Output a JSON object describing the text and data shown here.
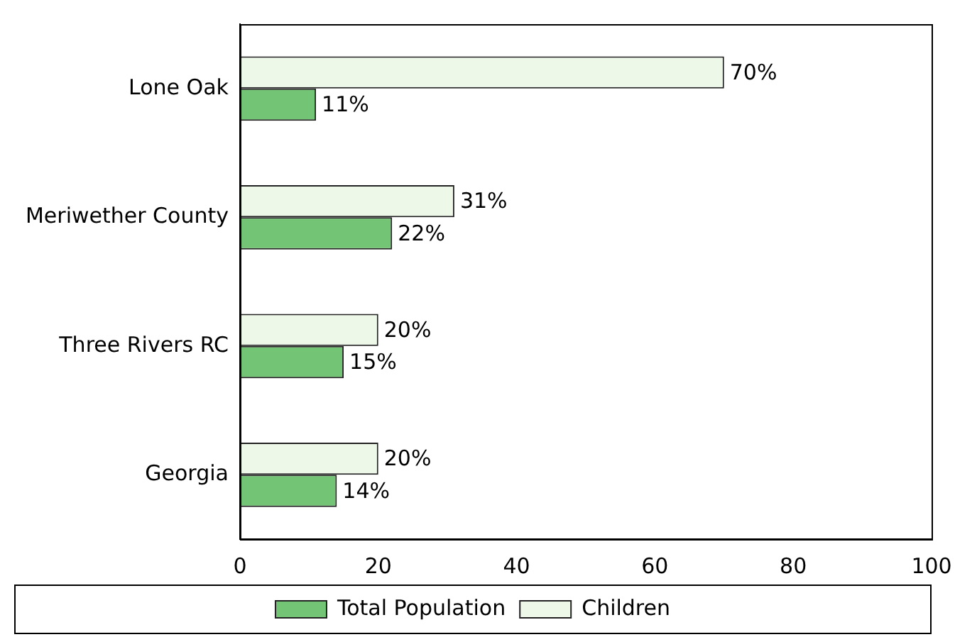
{
  "chart_data": {
    "type": "bar",
    "orientation": "horizontal",
    "categories": [
      "Lone Oak",
      "Meriwether County",
      "Three Rivers RC",
      "Georgia"
    ],
    "series": [
      {
        "name": "Total Population",
        "color": "#74c476",
        "values": [
          11,
          22,
          15,
          14
        ],
        "value_labels": [
          "11%",
          "22%",
          "15%",
          "14%"
        ]
      },
      {
        "name": "Children",
        "color": "#edf8e9",
        "values": [
          70,
          31,
          20,
          20
        ],
        "value_labels": [
          "70%",
          "31%",
          "20%",
          "20%"
        ]
      }
    ],
    "xlim": [
      0,
      100
    ],
    "xticks": [
      0,
      20,
      40,
      60,
      80,
      100
    ],
    "grid": false,
    "legend": "bottom"
  }
}
